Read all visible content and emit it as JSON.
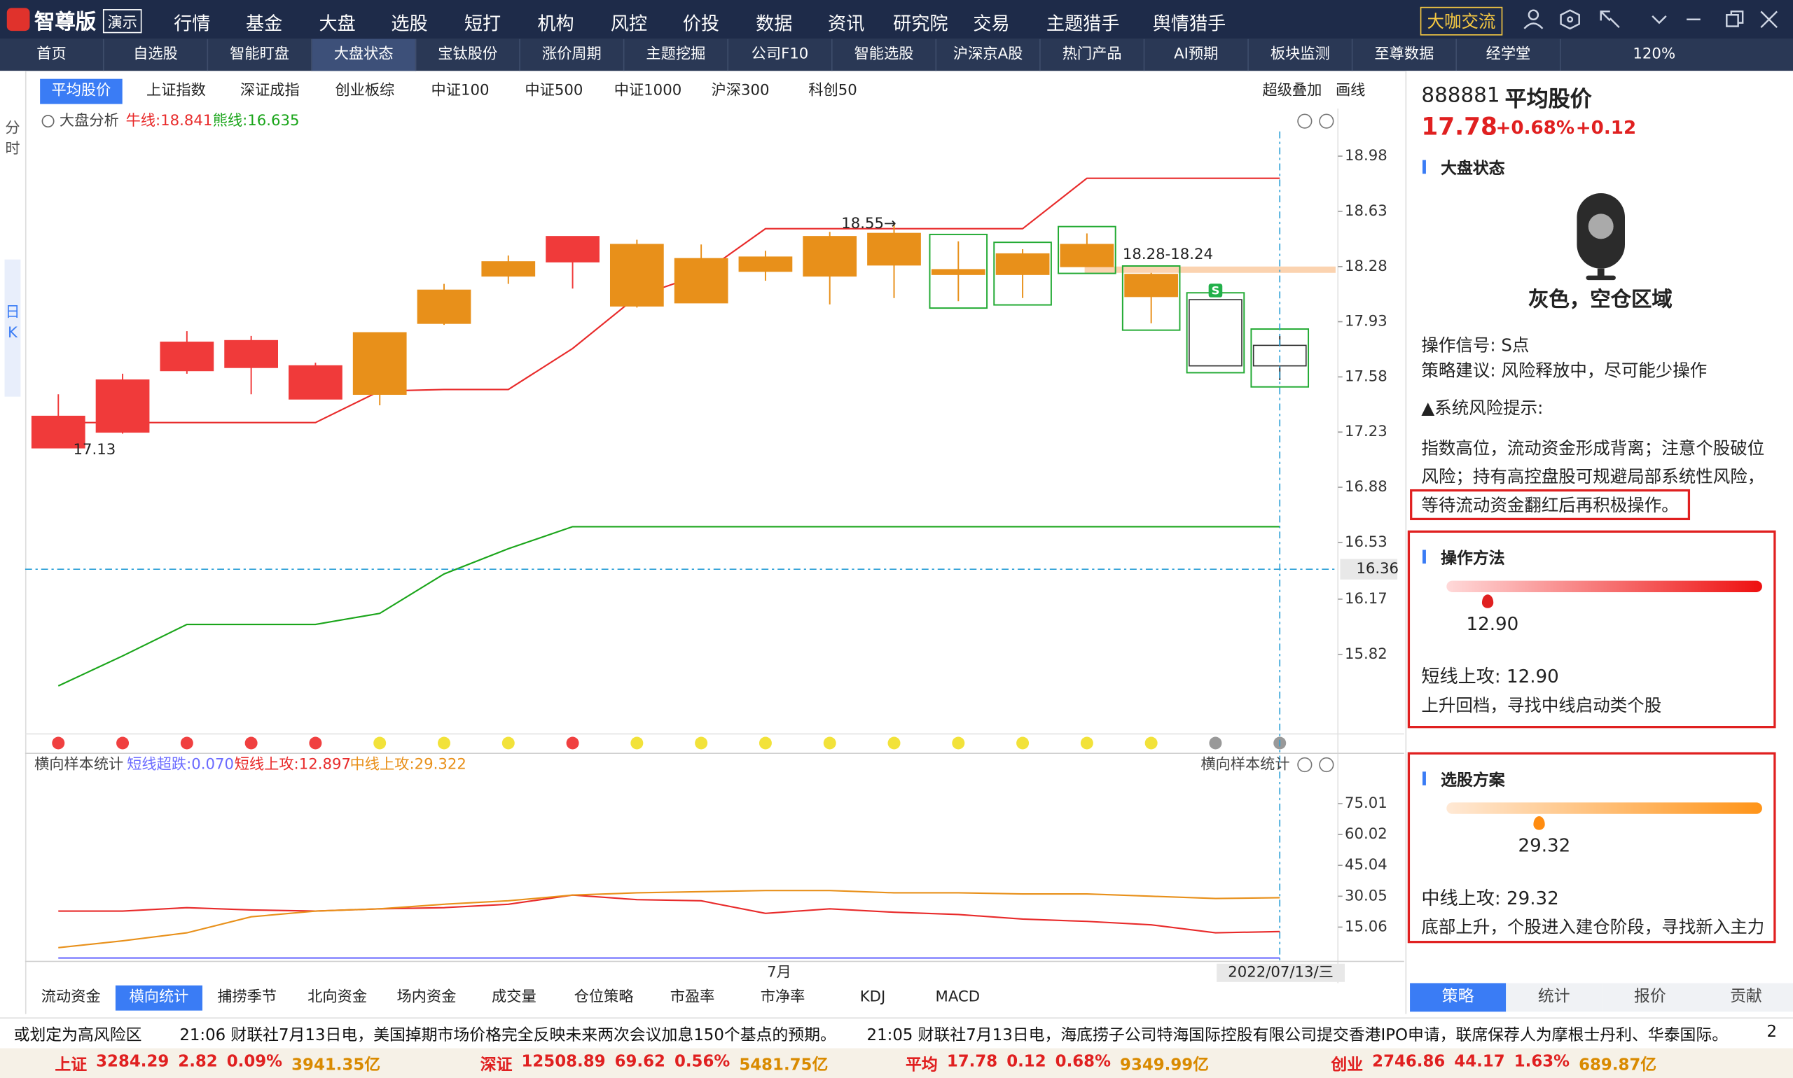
{
  "menu": {
    "logo": "智尊版",
    "demo": "演示",
    "items": [
      "行情",
      "基金",
      "大盘",
      "选股",
      "短打",
      "机构",
      "风控",
      "价投",
      "数据",
      "资讯",
      "研究院",
      "交易",
      "主题猎手",
      "舆情猎手"
    ],
    "button": "大咖交流"
  },
  "tabs": {
    "items": [
      "首页",
      "自选股",
      "智能盯盘",
      "大盘状态",
      "宝钛股份",
      "涨价周期",
      "主题挖掘",
      "公司F10",
      "智能选股",
      "沪深京A股",
      "热门产品",
      "AI预期",
      "板块监测",
      "至尊数据",
      "经学堂"
    ],
    "active": 3,
    "zoom": "120%"
  },
  "side": [
    "分时",
    "日K"
  ],
  "index_tabs": {
    "items": [
      "平均股价",
      "上证指数",
      "深证成指",
      "创业板综",
      "中证100",
      "中证500",
      "中证1000",
      "沪深300",
      "科创50"
    ],
    "active": 0,
    "tools": [
      "超级叠加",
      "画线"
    ]
  },
  "chart_data": [
    {
      "type": "candlestick",
      "title": "大盘分析",
      "categories": [
        null,
        null,
        null,
        null,
        null,
        null,
        null,
        null,
        null,
        null,
        null,
        "7月",
        null,
        null,
        null,
        null,
        null,
        null,
        null,
        "2022/07/13/三"
      ],
      "candles": [
        {
          "open": 17.13,
          "high": 17.47,
          "low": 17.13,
          "close": 17.33,
          "color": "#f03a3a"
        },
        {
          "open": 17.23,
          "high": 17.6,
          "low": 17.22,
          "close": 17.56,
          "color": "#f03a3a"
        },
        {
          "open": 17.62,
          "high": 17.87,
          "low": 17.6,
          "close": 17.8,
          "color": "#f03a3a"
        },
        {
          "open": 17.64,
          "high": 17.84,
          "low": 17.47,
          "close": 17.81,
          "color": "#f03a3a"
        },
        {
          "open": 17.44,
          "high": 17.67,
          "low": 17.44,
          "close": 17.65,
          "color": "#f03a3a"
        },
        {
          "open": 17.47,
          "high": 17.86,
          "low": 17.4,
          "close": 17.86,
          "color": "#e8901a"
        },
        {
          "open": 17.92,
          "high": 18.17,
          "low": 17.91,
          "close": 18.13,
          "color": "#e8901a"
        },
        {
          "open": 18.22,
          "high": 18.35,
          "low": 18.17,
          "close": 18.31,
          "color": "#e8901a"
        },
        {
          "open": 18.31,
          "high": 18.47,
          "low": 18.14,
          "close": 18.47,
          "color": "#f03a3a"
        },
        {
          "open": 18.42,
          "high": 18.45,
          "low": 18.02,
          "close": 18.03,
          "color": "#e8901a"
        },
        {
          "open": 18.33,
          "high": 18.42,
          "low": 18.05,
          "close": 18.05,
          "color": "#e8901a"
        },
        {
          "open": 18.34,
          "high": 18.38,
          "low": 18.19,
          "close": 18.25,
          "color": "#e8901a"
        },
        {
          "open": 18.47,
          "high": 18.5,
          "low": 18.04,
          "close": 18.22,
          "color": "#e8901a"
        },
        {
          "open": 18.49,
          "high": 18.55,
          "low": 18.08,
          "close": 18.29,
          "color": "#e8901a"
        },
        {
          "open": 18.26,
          "high": 18.44,
          "low": 18.06,
          "close": 18.23,
          "color": "#e8901a",
          "boxed": true
        },
        {
          "open": 18.36,
          "high": 18.39,
          "low": 18.08,
          "close": 18.23,
          "color": "#e8901a",
          "boxed": true
        },
        {
          "open": 18.42,
          "high": 18.49,
          "low": 18.28,
          "close": 18.28,
          "color": "#e8901a",
          "boxed": true
        },
        {
          "open": 18.23,
          "high": 18.24,
          "low": 17.92,
          "close": 18.09,
          "color": "#e8901a",
          "boxed": true
        },
        {
          "open": 18.07,
          "high": 18.07,
          "low": 17.65,
          "close": 17.65,
          "color": "#ffffff",
          "boxed": true,
          "signal": "S"
        },
        {
          "open": 17.65,
          "high": 17.84,
          "low": 17.56,
          "close": 17.78,
          "color": "#ffffff",
          "boxed": true
        }
      ],
      "series": [
        {
          "name": "牛线:18.841",
          "color": "#e82a2a",
          "values": [
            17.29,
            17.29,
            17.29,
            17.29,
            17.29,
            17.49,
            17.5,
            17.5,
            17.76,
            18.09,
            18.23,
            18.52,
            18.52,
            18.52,
            18.52,
            18.52,
            18.84,
            18.84,
            18.84,
            18.84
          ]
        },
        {
          "name": "熊线:16.635",
          "color": "#1aa51a",
          "values": [
            15.62,
            15.81,
            16.01,
            16.01,
            16.01,
            16.08,
            16.33,
            16.49,
            16.63,
            16.63,
            16.63,
            16.63,
            16.63,
            16.63,
            16.63,
            16.63,
            16.63,
            16.63,
            16.63,
            16.63
          ]
        }
      ],
      "annotations": [
        {
          "label": "18.55→",
          "value": 18.55
        },
        {
          "label": "17.13",
          "value": 17.13
        }
      ],
      "band": {
        "values": [
          18.28,
          18.24
        ],
        "label": "18.28-18.24",
        "color": "#fbd3b0"
      },
      "crosshair": 16.36,
      "dots": [
        "#f04040",
        "#f04040",
        "#f04040",
        "#f04040",
        "#f04040",
        "#f2e23a",
        "#f2e23a",
        "#f2e23a",
        "#f04040",
        "#f2e23a",
        "#f2e23a",
        "#f2e23a",
        "#f2e23a",
        "#f2e23a",
        "#f2e23a",
        "#f2e23a",
        "#f2e23a",
        "#f2e23a",
        "#999999",
        "#999999"
      ],
      "ylim": [
        15.33,
        19.26
      ],
      "yticks": [
        18.98,
        18.63,
        18.28,
        17.93,
        17.58,
        17.23,
        16.88,
        16.53,
        16.17,
        15.82
      ]
    },
    {
      "type": "line",
      "title": "横向样本统计",
      "series": [
        {
          "name": "短线超跌:0.070",
          "color": "#6b6bff",
          "values": [
            0.07,
            0.07,
            0.07,
            0.07,
            0.07,
            0.07,
            0.07,
            0.07,
            0.07,
            0.07,
            0.07,
            0.07,
            0.07,
            0.07,
            0.07,
            0.07,
            0.07,
            0.07,
            0.07,
            0.07
          ]
        },
        {
          "name": "短线上攻:12.897",
          "color": "#e82a2a",
          "values": [
            22.83,
            22.83,
            24.5,
            23.39,
            22.83,
            23.94,
            24.5,
            26.16,
            30.6,
            28.38,
            27.83,
            21.72,
            23.94,
            22.28,
            21.17,
            18.95,
            17.84,
            16.17,
            12.28,
            12.9
          ]
        },
        {
          "name": "中线上攻:29.322",
          "color": "#e8901a",
          "values": [
            5.07,
            8.4,
            12.28,
            20.06,
            22.83,
            23.94,
            26.16,
            27.83,
            30.6,
            31.71,
            32.27,
            32.82,
            32.82,
            31.71,
            31.71,
            31.16,
            31.16,
            30.05,
            28.94,
            29.32
          ]
        }
      ],
      "ylim": [
        0.07,
        87.78
      ],
      "yticks": [
        75.01,
        60.02,
        45.04,
        30.05,
        15.06
      ]
    }
  ],
  "bottom_tabs": {
    "items": [
      "流动资金",
      "横向统计",
      "捕捞季节",
      "北向资金",
      "场内资金",
      "成交量",
      "仓位策略",
      "市盈率",
      "市净率",
      "KDJ",
      "MACD"
    ],
    "active": 1
  },
  "panel": {
    "code": "888881",
    "name": "平均股价",
    "price": "17.78",
    "pct": "+0.68%",
    "chg": "+0.12",
    "status": {
      "title": "大盘状态",
      "state": "灰色，空仓区域",
      "signal": "操作信号: S点",
      "advice": "策略建议: 风险释放中，尽可能少操作",
      "risk_title": "▲系统风险提示:",
      "risk_lines": [
        "指数高位，流动资金形成背离；注意个股破位",
        "风险；持有高控盘股可规避局部系统性风险，"
      ],
      "risk_highlight": "等待流动资金翻红后再积极操作。"
    },
    "method": {
      "title": "操作方法",
      "value": 12.9,
      "value_label": "12.90",
      "line1": "短线上攻: 12.90",
      "line2": "上升回档，寻找中线启动类个股"
    },
    "pick": {
      "title": "选股方案",
      "value": 29.32,
      "value_label": "29.32",
      "line1": "中线上攻: 29.32",
      "line2": "底部上升，个股进入建仓阶段，寻找新入主力"
    },
    "tabs": [
      "策略",
      "统计",
      "报价",
      "贡献"
    ],
    "active": 0
  },
  "news": [
    "或划定为高风险区",
    "21:06 财联社7月13日电，美国掉期市场价格完全反映未来两次会议加息150个基点的预期。",
    "21:05 财联社7月13日电，海底捞子公司特海国际控股有限公司提交香港IPO申请，联席保荐人为摩根士丹利、华泰国际。",
    "2"
  ],
  "status": [
    {
      "name": "上证",
      "price": "3284.29",
      "chg": "2.82",
      "pct": "0.09%",
      "amount": "3941.35亿"
    },
    {
      "name": "深证",
      "price": "12508.89",
      "chg": "69.62",
      "pct": "0.56%",
      "amount": "5481.75亿"
    },
    {
      "name": "平均",
      "price": "17.78",
      "chg": "0.12",
      "pct": "0.68%",
      "amount": "9349.99亿"
    },
    {
      "name": "创业",
      "price": "2746.86",
      "chg": "44.17",
      "pct": "1.63%",
      "amount": "689.87亿"
    }
  ]
}
